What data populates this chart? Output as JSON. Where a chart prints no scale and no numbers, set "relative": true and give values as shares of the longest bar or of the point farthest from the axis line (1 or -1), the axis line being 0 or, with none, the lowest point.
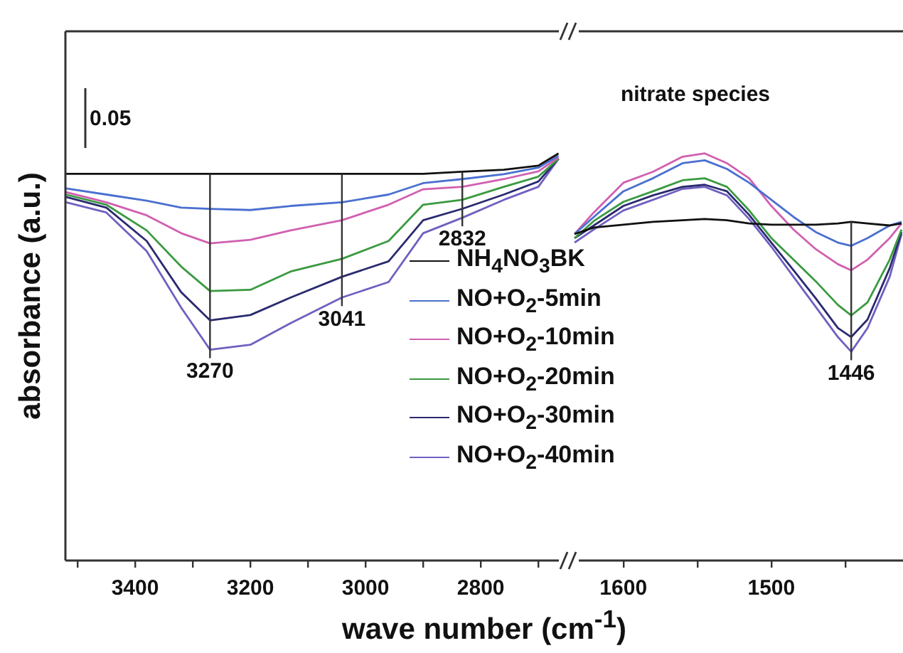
{
  "chart_data": [
    {
      "type": "line",
      "relative": true,
      "xlabel": "wave number (cm$^{-1}$)",
      "ylabel": "absorbance (a.u.)",
      "legend": "bottom right",
      "xlim": [
        3521,
        2657
      ],
      "xticks": [
        {
          "value": 3500,
          "label": null
        },
        3400,
        {
          "value": 3300,
          "label": null
        },
        3200,
        {
          "value": 3100,
          "label": null
        },
        3000,
        {
          "value": 2900,
          "label": null
        },
        2800,
        {
          "value": 2700,
          "label": null
        }
      ],
      "x": [
        3520,
        3450,
        3380,
        3320,
        3270,
        3200,
        3130,
        3041,
        2960,
        2900,
        2832,
        2760,
        2700,
        2665
      ],
      "series": [
        {
          "name": "NH$_{4}$NO$_{3}$BK",
          "color": "#111111",
          "values": [
            0.95,
            0.95,
            0.95,
            0.95,
            0.95,
            0.95,
            0.95,
            0.95,
            0.95,
            0.95,
            0.955,
            0.96,
            0.97,
            1.0
          ]
        },
        {
          "name": "NO+O$_{2}$-5min",
          "color": "#4a6fd0",
          "values": [
            0.914,
            0.899,
            0.884,
            0.867,
            0.864,
            0.861,
            0.871,
            0.88,
            0.899,
            0.927,
            0.937,
            0.949,
            0.965,
            0.994
          ]
        },
        {
          "name": "NO+O$_{2}$-10min",
          "color": "#d060b0",
          "values": [
            0.905,
            0.88,
            0.848,
            0.804,
            0.779,
            0.788,
            0.811,
            0.836,
            0.874,
            0.912,
            0.918,
            0.937,
            0.956,
            0.99
          ]
        },
        {
          "name": "NO+O$_{2}$-20min",
          "color": "#3a9a40",
          "values": [
            0.899,
            0.874,
            0.811,
            0.722,
            0.662,
            0.665,
            0.71,
            0.741,
            0.785,
            0.874,
            0.886,
            0.918,
            0.943,
            0.987
          ]
        },
        {
          "name": "NO+O$_{2}$-30min",
          "color": "#2a2a70",
          "values": [
            0.893,
            0.867,
            0.785,
            0.659,
            0.59,
            0.603,
            0.646,
            0.697,
            0.735,
            0.836,
            0.864,
            0.899,
            0.931,
            0.987
          ]
        },
        {
          "name": "NO+O$_{2}$-40min",
          "color": "#7060c0",
          "values": [
            0.88,
            0.855,
            0.76,
            0.621,
            0.518,
            0.53,
            0.583,
            0.646,
            0.684,
            0.804,
            0.842,
            0.886,
            0.918,
            0.987
          ]
        }
      ],
      "annotations": [
        "0.05",
        {
          "text": "3270",
          "x": 3270,
          "y": 0.518
        },
        {
          "text": "3041",
          "x": 3041,
          "y": 0.646
        },
        {
          "text": "2832",
          "x": 2832,
          "y": 0.842
        }
      ]
    },
    {
      "type": "line",
      "relative": true,
      "xlim": [
        1634,
        1411
      ],
      "xticks": [
        1600,
        {
          "value": 1550,
          "label": null
        },
        1500,
        {
          "value": 1450,
          "label": null
        }
      ],
      "x": [
        1633,
        1620,
        1600,
        1580,
        1560,
        1545,
        1530,
        1515,
        1500,
        1485,
        1470,
        1455,
        1446,
        1435,
        1420,
        1412
      ],
      "series": [
        {
          "color": "#111111",
          "values": [
            0.802,
            0.818,
            0.825,
            0.832,
            0.836,
            0.839,
            0.836,
            0.828,
            0.825,
            0.825,
            0.825,
            0.828,
            0.832,
            0.828,
            0.823,
            0.828
          ]
        },
        {
          "color": "#4a6fd0",
          "values": [
            0.802,
            0.844,
            0.907,
            0.939,
            0.976,
            0.983,
            0.962,
            0.928,
            0.886,
            0.844,
            0.807,
            0.781,
            0.773,
            0.792,
            0.823,
            0.832
          ]
        },
        {
          "color": "#d060b0",
          "values": [
            0.802,
            0.855,
            0.928,
            0.955,
            0.992,
            1.0,
            0.976,
            0.939,
            0.871,
            0.813,
            0.765,
            0.728,
            0.713,
            0.739,
            0.792,
            0.828
          ]
        },
        {
          "color": "#3a9a40",
          "values": [
            0.792,
            0.834,
            0.881,
            0.907,
            0.934,
            0.939,
            0.918,
            0.86,
            0.792,
            0.739,
            0.686,
            0.628,
            0.602,
            0.634,
            0.739,
            0.813
          ]
        },
        {
          "color": "#2a2a70",
          "values": [
            0.792,
            0.823,
            0.871,
            0.897,
            0.918,
            0.923,
            0.907,
            0.849,
            0.781,
            0.713,
            0.644,
            0.571,
            0.549,
            0.592,
            0.718,
            0.807
          ]
        },
        {
          "color": "#7060c0",
          "values": [
            0.781,
            0.813,
            0.86,
            0.886,
            0.913,
            0.918,
            0.897,
            0.839,
            0.771,
            0.697,
            0.623,
            0.549,
            0.513,
            0.571,
            0.697,
            0.802
          ]
        }
      ],
      "annotations": [
        "nitrate species",
        {
          "text": "1446",
          "x": 1446,
          "y": 0.513
        }
      ]
    }
  ]
}
